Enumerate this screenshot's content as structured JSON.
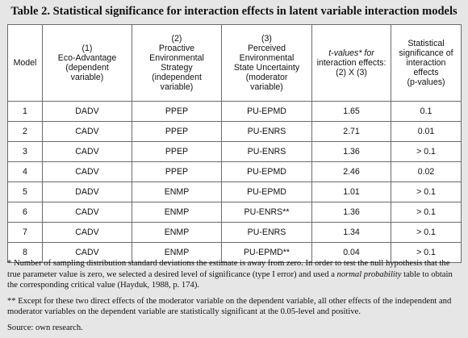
{
  "title": "Table 2. Statistical significance for interaction effects in latent variable interaction models",
  "headers": [
    [
      "Model"
    ],
    [
      "(1)",
      "Eco-Advantage",
      "(dependent",
      "variable)"
    ],
    [
      "(2)",
      "Proactive",
      "Environmental",
      "Strategy",
      "(independent",
      "variable)"
    ],
    [
      "(3)",
      "Perceived",
      "Environmental",
      "State Uncertainty",
      "(moderator",
      "variable)"
    ],
    [
      "t-values* for",
      "interaction effects:",
      "(2) X (3)"
    ],
    [
      "Statistical",
      "significance of",
      "interaction effects",
      "(p-values)"
    ]
  ],
  "rows": [
    [
      "1",
      "DADV",
      "PPEP",
      "PU-EPMD",
      "1.65",
      "0.1"
    ],
    [
      "2",
      "CADV",
      "PPEP",
      "PU-ENRS",
      "2.71",
      "0.01"
    ],
    [
      "3",
      "CADV",
      "PPEP",
      "PU-ENRS",
      "1.36",
      "> 0.1"
    ],
    [
      "4",
      "CADV",
      "PPEP",
      "PU-EPMD",
      "2.46",
      "0.02"
    ],
    [
      "5",
      "DADV",
      "ENMP",
      "PU-EPMD",
      "1.01",
      "> 0.1"
    ],
    [
      "6",
      "CADV",
      "ENMP",
      "PU-ENRS**",
      "1.36",
      "> 0.1"
    ],
    [
      "7",
      "CADV",
      "ENMP",
      "PU-ENRS",
      "1.34",
      "> 0.1"
    ],
    [
      "8",
      "CADV",
      "ENMP",
      "PU-EPMD**",
      "0.04",
      "> 0.1"
    ]
  ],
  "notes": {
    "note1_a": "* Number of sampling distribution standard deviations the estimate is away from zero. In order to test the null hypothesis that the true parameter value is zero, we selected a desired level of significance (type I error) and used a ",
    "note1_em": "normal probability",
    "note1_b": " table to obtain the corresponding critical value (Hayduk, 1988, p. 174).",
    "note2": "** Except for these two direct effects of the moderator variable on the dependent variable, all other effects of the independent and moderator variables on the dependent variable are statistically significant at the 0.05-level and positive.",
    "source": "Source: own research."
  }
}
